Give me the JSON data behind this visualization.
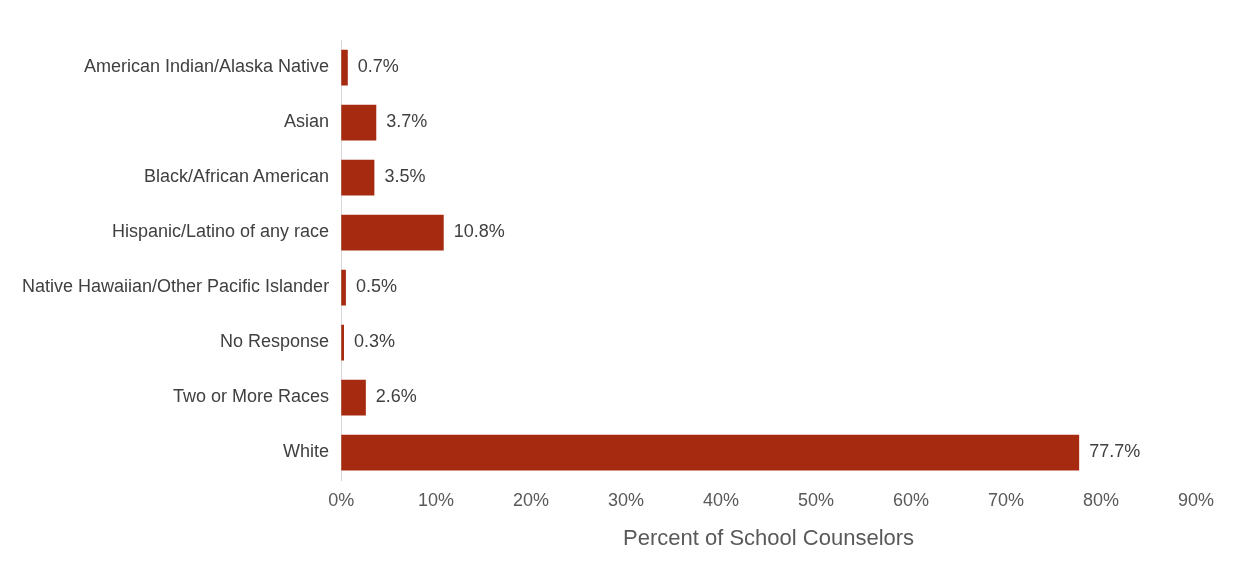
{
  "chart_data": {
    "type": "bar",
    "orientation": "horizontal",
    "xlabel": "Percent of School Counselors",
    "categories": [
      "American Indian/Alaska Native",
      "Asian",
      "Black/African American",
      "Hispanic/Latino of any race",
      "Native Hawaiian/Other Pacific Islander",
      "No Response",
      "Two or More Races",
      "White"
    ],
    "values": [
      0.7,
      3.7,
      3.5,
      10.8,
      0.5,
      0.3,
      2.6,
      77.7
    ],
    "value_labels": [
      "0.7%",
      "3.7%",
      "3.5%",
      "10.8%",
      "0.5%",
      "0.3%",
      "2.6%",
      "77.7%"
    ],
    "color": "#a52a0f",
    "xlim": [
      0,
      90
    ],
    "xticks": [
      {
        "value": 0,
        "label": "0%"
      },
      {
        "value": 10,
        "label": "10%"
      },
      {
        "value": 20,
        "label": "20%"
      },
      {
        "value": 30,
        "label": "30%"
      },
      {
        "value": 40,
        "label": "40%"
      },
      {
        "value": 50,
        "label": "50%"
      },
      {
        "value": 60,
        "label": "60%"
      },
      {
        "value": 70,
        "label": "70%"
      },
      {
        "value": 80,
        "label": "80%"
      },
      {
        "value": 90,
        "label": "90%"
      }
    ],
    "grid": false,
    "legend": false
  }
}
